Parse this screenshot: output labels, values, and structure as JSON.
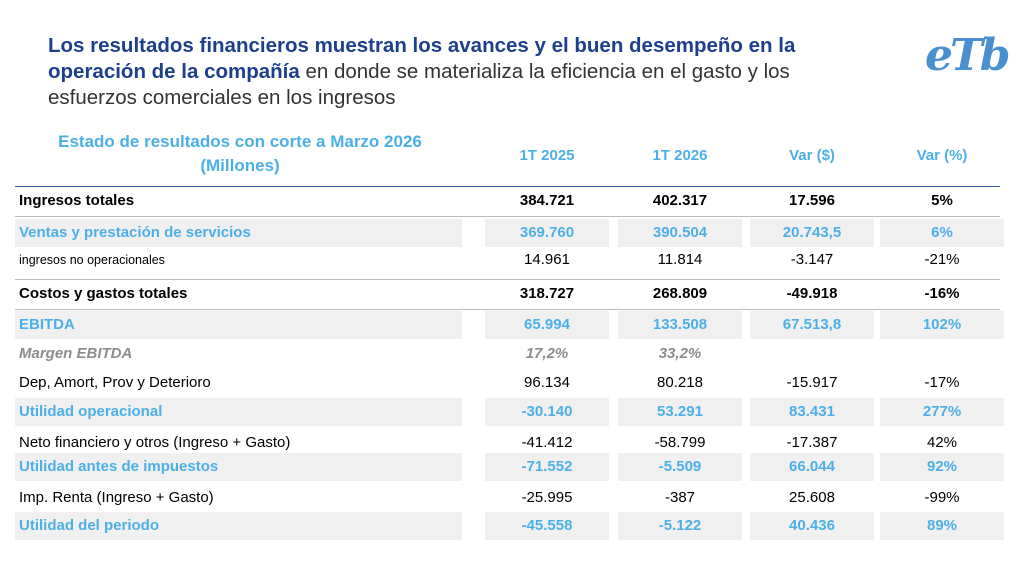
{
  "header": {
    "title_bold": "Los resultados financieros muestran los avances y el buen desempeño en la operación de la compañía",
    "title_rest": "en donde se materializa la eficiencia en el gasto y los esfuerzos comerciales en los ingresos",
    "logo": "eTb"
  },
  "table": {
    "caption_line1": "Estado de resultados con corte a Marzo 2026",
    "caption_line2": "(Millones)",
    "columns": [
      "1T 2025",
      "1T 2026",
      "Var ($)",
      "Var (%)"
    ],
    "rows": [
      {
        "label": "Ingresos totales",
        "values": [
          "384.721",
          "402.317",
          "17.596",
          "5%"
        ]
      },
      {
        "label": "Ventas y prestación de servicios",
        "values": [
          "369.760",
          "390.504",
          "20.743,5",
          "6%"
        ]
      },
      {
        "label": "ingresos no operacionales",
        "values": [
          "14.961",
          "11.814",
          "-3.147",
          "-21%"
        ]
      },
      {
        "label": "Costos y gastos totales",
        "values": [
          "318.727",
          "268.809",
          "-49.918",
          "-16%"
        ]
      },
      {
        "label": "EBITDA",
        "values": [
          "65.994",
          "133.508",
          "67.513,8",
          "102%"
        ]
      },
      {
        "label": "Margen EBITDA",
        "values": [
          "17,2%",
          "33,2%"
        ]
      },
      {
        "label": "Dep, Amort, Prov y Deterioro",
        "values": [
          "96.134",
          "80.218",
          "-15.917",
          "-17%"
        ]
      },
      {
        "label": "Utilidad operacional",
        "values": [
          "-30.140",
          "53.291",
          "83.431",
          "277%"
        ]
      },
      {
        "label": "Neto financiero y otros (Ingreso + Gasto)",
        "values": [
          "-41.412",
          "-58.799",
          "-17.387",
          "42%"
        ]
      },
      {
        "label": "Utilidad antes de impuestos",
        "values": [
          "-71.552",
          "-5.509",
          "66.044",
          "92%"
        ]
      },
      {
        "label": "Imp. Renta (Ingreso + Gasto)",
        "values": [
          "-25.995",
          "-387",
          "25.608",
          "-99%"
        ]
      },
      {
        "label": "Utilidad del periodo",
        "values": [
          "-45.558",
          "-5.122",
          "40.436",
          "89%"
        ]
      }
    ]
  }
}
